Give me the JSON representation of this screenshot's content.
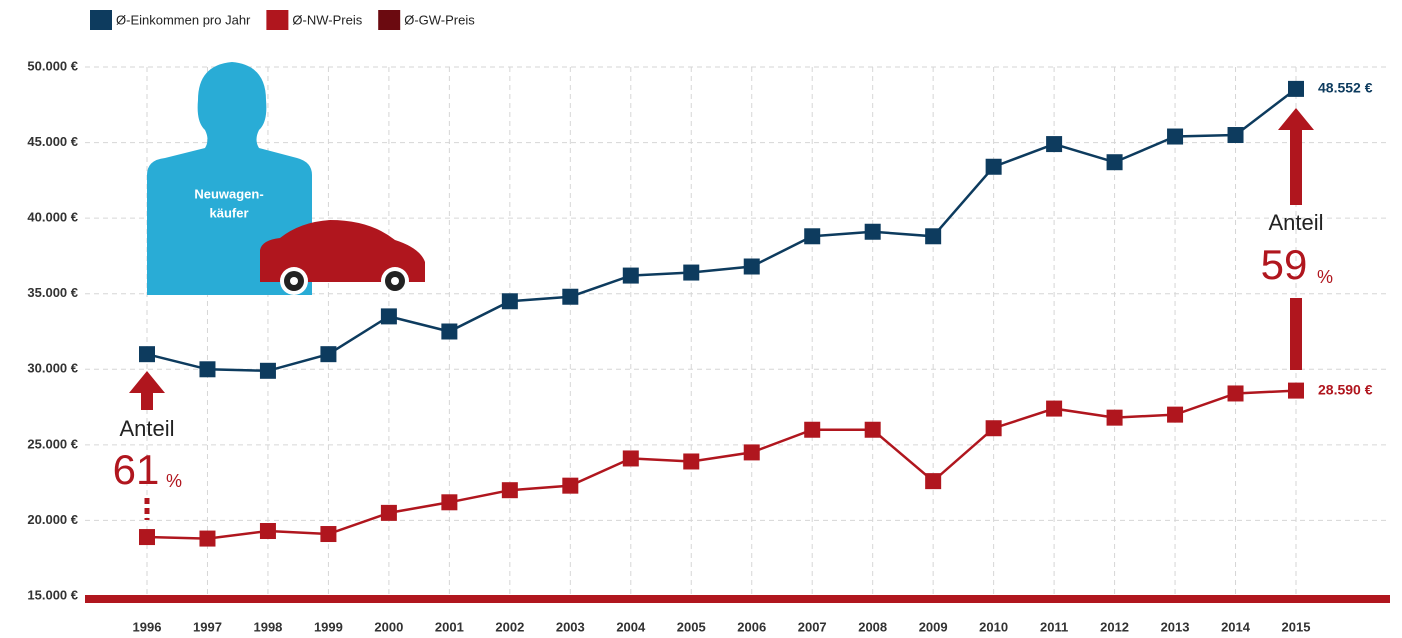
{
  "chart_data": {
    "type": "line",
    "categories": [
      "1996",
      "1997",
      "1998",
      "1999",
      "2000",
      "2001",
      "2002",
      "2003",
      "2004",
      "2005",
      "2006",
      "2007",
      "2008",
      "2009",
      "2010",
      "2011",
      "2012",
      "2013",
      "2014",
      "2015"
    ],
    "series": [
      {
        "name": "Ø-Einkommen pro Jahr",
        "color": "#0d3b5e",
        "values": [
          31000,
          30000,
          29900,
          31000,
          33500,
          32500,
          34500,
          34800,
          36200,
          36400,
          36800,
          38800,
          39100,
          38800,
          43400,
          44900,
          43700,
          45400,
          45500,
          48552
        ],
        "value_labels": [
          null,
          null,
          null,
          null,
          null,
          null,
          null,
          null,
          null,
          null,
          null,
          null,
          null,
          null,
          null,
          null,
          null,
          null,
          null,
          "48.552 €"
        ]
      },
      {
        "name": "Ø-NW-Preis",
        "color": "#b0161e",
        "values": [
          18900,
          18800,
          19300,
          19100,
          20500,
          21200,
          22000,
          22300,
          24100,
          23900,
          24500,
          26000,
          26000,
          22600,
          26100,
          27400,
          26800,
          27000,
          28400,
          28590
        ],
        "value_labels": [
          null,
          null,
          null,
          null,
          null,
          null,
          null,
          null,
          null,
          null,
          null,
          null,
          null,
          null,
          null,
          null,
          null,
          null,
          null,
          "28.590 €"
        ]
      },
      {
        "name": "Ø-GW-Preis",
        "color": "#6b0a10",
        "values": [
          null,
          null,
          null,
          null,
          null,
          null,
          null,
          null,
          null,
          null,
          null,
          null,
          null,
          null,
          null,
          null,
          null,
          null,
          null,
          null
        ]
      }
    ],
    "ylim": [
      15000,
      50000
    ],
    "yticks": [
      {
        "value": 15000,
        "label": "15.000 €"
      },
      {
        "value": 20000,
        "label": "20.000 €"
      },
      {
        "value": 25000,
        "label": "25.000 €"
      },
      {
        "value": 30000,
        "label": "30.000 €"
      },
      {
        "value": 35000,
        "label": "35.000 €"
      },
      {
        "value": 40000,
        "label": "40.000 €"
      },
      {
        "value": 45000,
        "label": "45.000 €"
      },
      {
        "value": 50000,
        "label": "50.000 €"
      }
    ],
    "grid": true,
    "highlight_color": "#f0a830",
    "annotations": [
      {
        "label": "Anteil",
        "value": 61,
        "unit": "%"
      },
      {
        "label": "Anteil",
        "value": 59,
        "unit": "%"
      }
    ],
    "illustration_label": [
      "Neuwagen-",
      "käufer"
    ]
  }
}
